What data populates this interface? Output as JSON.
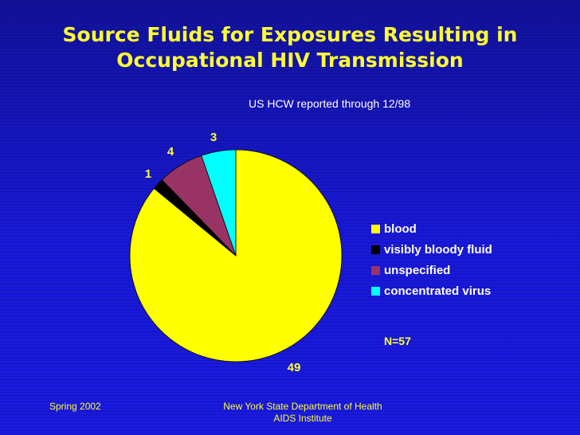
{
  "slide": {
    "title_line1": "Source Fluids for Exposures Resulting in",
    "title_line2": "Occupational HIV Transmission",
    "subtitle": "US HCW reported through 12/98",
    "note": "N=57",
    "footer_left": "Spring 2002",
    "footer_center_line1": "New York State Department of Health",
    "footer_center_line2": "AIDS Institute"
  },
  "colors": {
    "title": "#ffff33",
    "background": "#1818d0",
    "data_label": "#ffff33"
  },
  "chart_data": {
    "type": "pie",
    "title": "Source Fluids for Exposures Resulting in Occupational HIV Transmission",
    "categories": [
      "blood",
      "visibly bloody fluid",
      "unspecified",
      "concentrated virus"
    ],
    "values": [
      49,
      1,
      4,
      3
    ],
    "data_labels": [
      "49",
      "1",
      "4",
      "3"
    ],
    "colors": [
      "#ffff00",
      "#000000",
      "#993366",
      "#00ffff"
    ],
    "legend_position": "right",
    "start": "12 o'clock",
    "direction": "clockwise"
  }
}
